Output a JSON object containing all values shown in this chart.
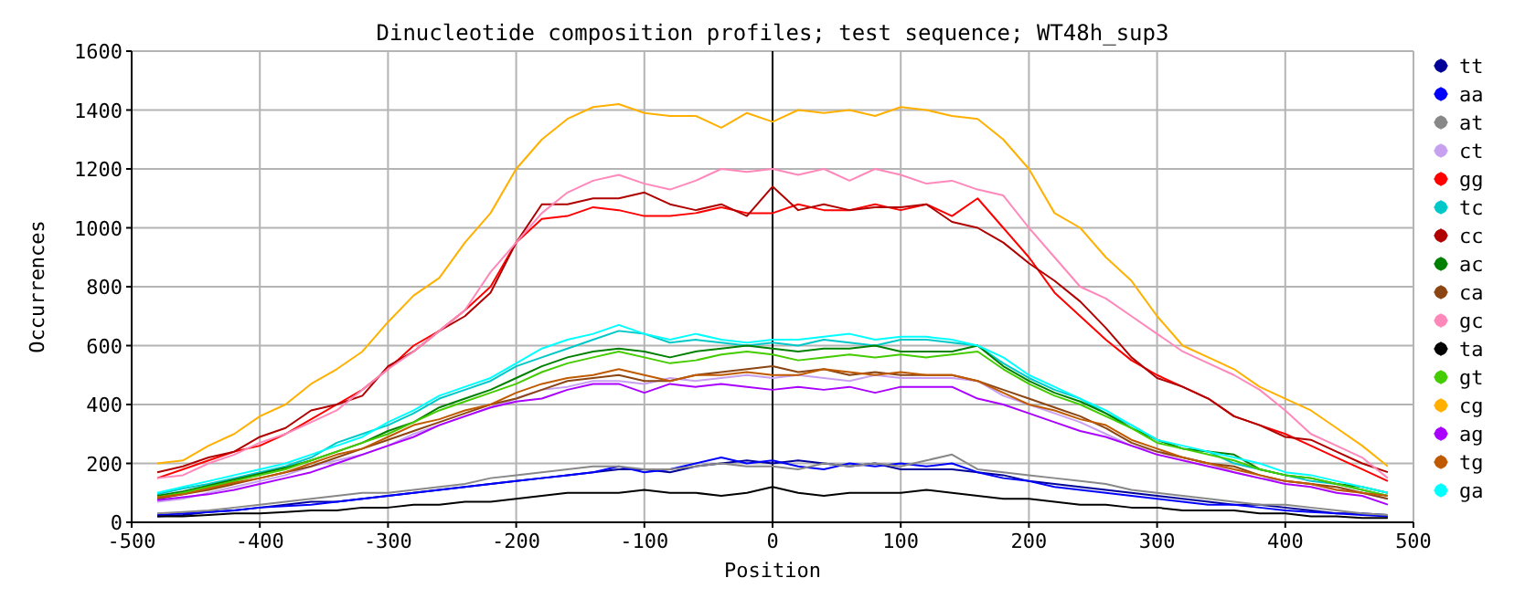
{
  "chart_data": {
    "type": "line",
    "title": "Dinucleotide composition profiles; test sequence; WT48h_sup3",
    "xlabel": "Position",
    "ylabel": "Occurrences",
    "xlim": [
      -500,
      500
    ],
    "ylim": [
      0,
      1600
    ],
    "xticks": [
      -500,
      -400,
      -300,
      -200,
      -100,
      0,
      100,
      200,
      300,
      400,
      500
    ],
    "yticks": [
      0,
      200,
      400,
      600,
      800,
      1000,
      1200,
      1400,
      1600
    ],
    "grid": true,
    "legend": "right",
    "marker": "none",
    "line_style": "solid",
    "ref_lines": [
      {
        "axis": "x",
        "value": 0,
        "color": "#000000"
      }
    ],
    "x": [
      -480,
      -460,
      -440,
      -420,
      -400,
      -380,
      -360,
      -340,
      -320,
      -300,
      -280,
      -260,
      -240,
      -220,
      -200,
      -180,
      -160,
      -140,
      -120,
      -100,
      -80,
      -60,
      -40,
      -20,
      0,
      20,
      40,
      60,
      80,
      100,
      120,
      140,
      160,
      180,
      200,
      220,
      240,
      260,
      280,
      300,
      320,
      340,
      360,
      380,
      400,
      420,
      440,
      460,
      480
    ],
    "series": [
      {
        "name": "tt",
        "color": "#000099",
        "values": [
          20,
          25,
          35,
          40,
          50,
          60,
          70,
          70,
          80,
          90,
          100,
          110,
          120,
          130,
          140,
          150,
          160,
          170,
          180,
          180,
          170,
          190,
          200,
          210,
          200,
          210,
          200,
          190,
          200,
          180,
          180,
          180,
          170,
          160,
          140,
          130,
          120,
          110,
          100,
          90,
          80,
          70,
          60,
          60,
          50,
          40,
          30,
          30,
          25
        ]
      },
      {
        "name": "aa",
        "color": "#0000ff",
        "values": [
          25,
          30,
          35,
          40,
          50,
          55,
          60,
          70,
          80,
          90,
          100,
          110,
          120,
          130,
          140,
          150,
          160,
          170,
          190,
          170,
          180,
          200,
          220,
          200,
          210,
          190,
          180,
          200,
          190,
          200,
          190,
          200,
          170,
          150,
          140,
          120,
          110,
          100,
          90,
          80,
          70,
          60,
          60,
          50,
          40,
          35,
          30,
          25,
          20
        ]
      },
      {
        "name": "at",
        "color": "#888888",
        "values": [
          30,
          35,
          40,
          50,
          60,
          70,
          80,
          90,
          100,
          100,
          110,
          120,
          130,
          150,
          160,
          170,
          180,
          190,
          190,
          180,
          180,
          190,
          200,
          190,
          190,
          180,
          200,
          190,
          200,
          190,
          210,
          230,
          180,
          170,
          160,
          150,
          140,
          130,
          110,
          100,
          90,
          80,
          70,
          60,
          60,
          50,
          40,
          30,
          25
        ]
      },
      {
        "name": "ct",
        "color": "#c8a0f0",
        "values": [
          70,
          80,
          100,
          120,
          140,
          160,
          190,
          210,
          230,
          260,
          300,
          330,
          360,
          390,
          420,
          450,
          460,
          480,
          480,
          470,
          490,
          480,
          490,
          500,
          490,
          500,
          490,
          480,
          500,
          490,
          490,
          490,
          480,
          430,
          400,
          370,
          340,
          300,
          260,
          240,
          220,
          200,
          170,
          150,
          140,
          130,
          110,
          100,
          80
        ]
      },
      {
        "name": "gg",
        "color": "#ff0000",
        "values": [
          150,
          180,
          210,
          240,
          260,
          300,
          350,
          400,
          450,
          520,
          600,
          650,
          720,
          800,
          950,
          1030,
          1040,
          1070,
          1060,
          1040,
          1040,
          1050,
          1070,
          1050,
          1050,
          1080,
          1060,
          1060,
          1080,
          1060,
          1080,
          1040,
          1100,
          1000,
          900,
          780,
          700,
          620,
          550,
          500,
          460,
          420,
          360,
          330,
          300,
          260,
          220,
          180,
          140
        ]
      },
      {
        "name": "tc",
        "color": "#00c8c8",
        "values": [
          95,
          115,
          130,
          150,
          170,
          190,
          220,
          270,
          300,
          330,
          370,
          420,
          450,
          480,
          530,
          560,
          590,
          620,
          650,
          640,
          610,
          620,
          610,
          600,
          610,
          600,
          620,
          610,
          600,
          620,
          620,
          610,
          600,
          540,
          490,
          450,
          420,
          370,
          330,
          280,
          250,
          240,
          200,
          180,
          160,
          140,
          130,
          110,
          90
        ]
      },
      {
        "name": "cc",
        "color": "#b00000",
        "values": [
          170,
          190,
          220,
          240,
          290,
          320,
          380,
          400,
          430,
          530,
          580,
          650,
          700,
          780,
          950,
          1080,
          1080,
          1100,
          1100,
          1120,
          1080,
          1060,
          1080,
          1040,
          1140,
          1060,
          1080,
          1060,
          1070,
          1070,
          1080,
          1020,
          1000,
          950,
          880,
          820,
          750,
          660,
          560,
          490,
          460,
          420,
          360,
          330,
          290,
          280,
          240,
          200,
          170
        ]
      },
      {
        "name": "ac",
        "color": "#008000",
        "values": [
          90,
          105,
          125,
          145,
          165,
          185,
          210,
          240,
          270,
          310,
          340,
          390,
          420,
          450,
          490,
          530,
          560,
          580,
          590,
          580,
          560,
          580,
          590,
          600,
          590,
          580,
          590,
          590,
          600,
          580,
          580,
          580,
          600,
          530,
          480,
          440,
          410,
          370,
          320,
          280,
          250,
          240,
          230,
          180,
          160,
          150,
          130,
          120,
          100
        ]
      },
      {
        "name": "ca",
        "color": "#8b4513",
        "values": [
          80,
          95,
          110,
          130,
          150,
          170,
          190,
          220,
          250,
          280,
          310,
          340,
          370,
          400,
          420,
          450,
          480,
          490,
          500,
          480,
          480,
          500,
          510,
          520,
          530,
          510,
          520,
          500,
          510,
          500,
          500,
          500,
          480,
          450,
          420,
          390,
          360,
          320,
          270,
          240,
          220,
          200,
          190,
          160,
          140,
          130,
          120,
          100,
          80
        ]
      },
      {
        "name": "gc",
        "color": "#ff88bb",
        "values": [
          150,
          160,
          200,
          230,
          270,
          300,
          340,
          380,
          450,
          520,
          580,
          650,
          720,
          850,
          950,
          1050,
          1120,
          1160,
          1180,
          1150,
          1130,
          1160,
          1200,
          1190,
          1200,
          1180,
          1200,
          1160,
          1200,
          1180,
          1150,
          1160,
          1130,
          1110,
          1000,
          900,
          800,
          760,
          700,
          640,
          580,
          540,
          500,
          450,
          380,
          300,
          260,
          220,
          150
        ]
      },
      {
        "name": "ta",
        "color": "#000000",
        "values": [
          20,
          20,
          25,
          30,
          30,
          35,
          40,
          40,
          50,
          50,
          60,
          60,
          70,
          70,
          80,
          90,
          100,
          100,
          100,
          110,
          100,
          100,
          90,
          100,
          120,
          100,
          90,
          100,
          100,
          100,
          110,
          100,
          90,
          80,
          80,
          70,
          60,
          60,
          50,
          50,
          40,
          40,
          40,
          30,
          30,
          20,
          20,
          15,
          15
        ]
      },
      {
        "name": "gt",
        "color": "#44cc00",
        "values": [
          85,
          100,
          120,
          140,
          160,
          180,
          210,
          240,
          270,
          300,
          340,
          380,
          410,
          440,
          470,
          510,
          540,
          560,
          580,
          560,
          540,
          550,
          570,
          580,
          570,
          550,
          560,
          570,
          560,
          570,
          560,
          570,
          580,
          520,
          470,
          430,
          400,
          360,
          320,
          270,
          250,
          230,
          210,
          180,
          160,
          150,
          130,
          110,
          90
        ]
      },
      {
        "name": "cg",
        "color": "#ffb000",
        "values": [
          200,
          210,
          260,
          300,
          360,
          400,
          470,
          520,
          580,
          680,
          770,
          830,
          950,
          1050,
          1200,
          1300,
          1370,
          1410,
          1420,
          1390,
          1380,
          1380,
          1340,
          1390,
          1360,
          1400,
          1390,
          1400,
          1380,
          1410,
          1400,
          1380,
          1370,
          1300,
          1200,
          1050,
          1000,
          900,
          820,
          700,
          600,
          560,
          520,
          460,
          420,
          380,
          320,
          260,
          190
        ]
      },
      {
        "name": "ag",
        "color": "#aa00ff",
        "values": [
          75,
          85,
          95,
          110,
          130,
          150,
          170,
          200,
          230,
          260,
          290,
          330,
          360,
          390,
          410,
          420,
          450,
          470,
          470,
          440,
          470,
          460,
          470,
          460,
          450,
          460,
          450,
          460,
          440,
          460,
          460,
          460,
          420,
          400,
          370,
          340,
          310,
          290,
          260,
          230,
          210,
          190,
          170,
          150,
          130,
          120,
          100,
          90,
          60
        ]
      },
      {
        "name": "tg",
        "color": "#c05a00",
        "values": [
          85,
          95,
          115,
          135,
          150,
          170,
          200,
          230,
          250,
          290,
          330,
          350,
          380,
          400,
          440,
          470,
          490,
          500,
          520,
          500,
          480,
          500,
          500,
          510,
          500,
          500,
          520,
          510,
          500,
          510,
          500,
          500,
          480,
          440,
          400,
          380,
          350,
          330,
          280,
          250,
          220,
          200,
          180,
          160,
          140,
          130,
          110,
          100,
          90
        ]
      },
      {
        "name": "ga",
        "color": "#00ffff",
        "values": [
          100,
          120,
          140,
          160,
          180,
          200,
          230,
          260,
          290,
          340,
          380,
          430,
          460,
          490,
          540,
          590,
          620,
          640,
          670,
          640,
          620,
          640,
          620,
          610,
          620,
          620,
          630,
          640,
          620,
          630,
          630,
          620,
          600,
          560,
          500,
          460,
          420,
          380,
          330,
          280,
          260,
          240,
          220,
          200,
          170,
          160,
          140,
          120,
          100
        ]
      }
    ]
  }
}
